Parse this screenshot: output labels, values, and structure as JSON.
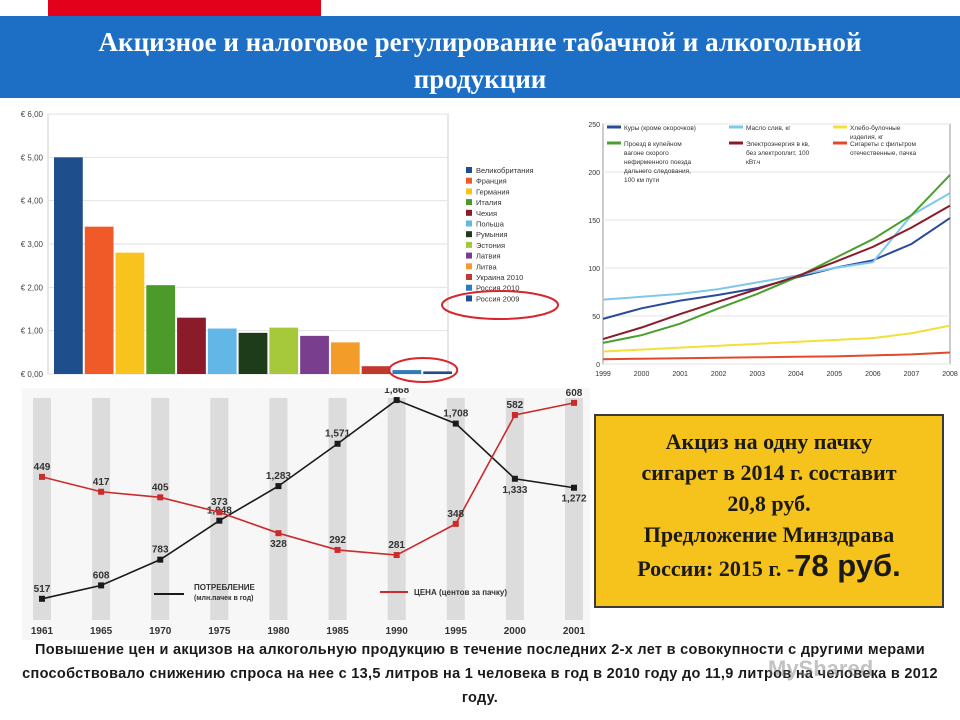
{
  "slide": {
    "title": "Акцизное и налоговое регулирование табачной и алкогольной продукции",
    "title_line1": "Акцизное и налоговое регулирование табачной и алкогольной",
    "title_line2": "продукции",
    "callout": {
      "line1": "Акциз на одну пачку",
      "line2": "сигарет в 2014 г. составит",
      "line3": "20,8 руб.",
      "line4": "Предложение Минздрава",
      "line5_a": "России:  2015 г. -",
      "line5_b": "78 руб."
    },
    "bottom_text": "Повышение цен и акцизов на алкогольную продукцию в течение последних 2-х лет в совокупности с другими мерами способствовало снижению спроса на нее с 13,5 литров на 1 человека в год в 2010 году до 11,9 литров на человека в 2012 году.",
    "watermark": "MyShared",
    "colors": {
      "banner": "#1c6fc4",
      "accent_red": "#e3001b",
      "callout": "#f6c21c"
    }
  },
  "chart_data": [
    {
      "type": "bar",
      "categories": [
        "Великобритания",
        "Франция",
        "Германия",
        "Италия",
        "Чехия",
        "Польша",
        "Румыния",
        "Эстония",
        "Латвия",
        "Литва",
        "Украина 2010",
        "Россия 2010",
        "Россия 2009"
      ],
      "values": [
        5.0,
        3.4,
        2.8,
        2.05,
        1.3,
        1.05,
        0.95,
        1.07,
        0.88,
        0.73,
        0.18,
        0.09,
        0.06
      ],
      "colors": [
        "#1f4e8c",
        "#f05a28",
        "#f7c31c",
        "#4c9a2a",
        "#8b1a2b",
        "#63b7e6",
        "#1e3b1a",
        "#a5c93a",
        "#7a3e8e",
        "#f39c2a",
        "#c0392b",
        "#2a7bc0",
        "#1f4e8c"
      ],
      "yticks": [
        "€ 0,00",
        "€ 1,00",
        "€ 2,00",
        "€ 3,00",
        "€ 4,00",
        "€ 5,00",
        "€ 6,00"
      ],
      "ylim": [
        0,
        6
      ],
      "legend": "right",
      "highlighted": [
        "Россия 2010",
        "Россия 2009"
      ]
    },
    {
      "type": "line",
      "x": [
        "1999",
        "2000",
        "2001",
        "2002",
        "2003",
        "2004",
        "2005",
        "2006",
        "2007",
        "2008"
      ],
      "ylim": [
        0,
        250
      ],
      "yticks": [
        "0",
        "50",
        "100",
        "150",
        "200",
        "250"
      ],
      "series": [
        {
          "name": "Куры (кроме окорочков)",
          "color": "#2a4a9c",
          "values": [
            47,
            58,
            66,
            72,
            79,
            90,
            100,
            108,
            125,
            152
          ]
        },
        {
          "name": "Масло слив, кг",
          "color": "#7ec8ea",
          "values": [
            67,
            70,
            73,
            78,
            85,
            92,
            100,
            106,
            155,
            178
          ]
        },
        {
          "name": "Хлебо-булочные изделия, кг",
          "color": "#f3df3a",
          "values": [
            13,
            15,
            17,
            19,
            21,
            23,
            25,
            27,
            32,
            40
          ]
        },
        {
          "name": "Проезд в купейном вагоне скорого нефирменного поезда дальнего следования, 100 км пути",
          "color": "#4aa02c",
          "values": [
            22,
            30,
            42,
            58,
            73,
            90,
            110,
            130,
            155,
            197
          ]
        },
        {
          "name": "Электроэнергия в кв, без электроплит, 100 кВт.ч",
          "color": "#8b1a2b",
          "values": [
            26,
            38,
            52,
            65,
            78,
            91,
            106,
            122,
            142,
            165
          ]
        },
        {
          "name": "Сигареты с фильтром отечественные, пачка",
          "color": "#e04a2a",
          "values": [
            5,
            5.5,
            6,
            6.5,
            7,
            7.5,
            8,
            9,
            10,
            12
          ]
        }
      ]
    },
    {
      "type": "line",
      "x": [
        "1961",
        "1965",
        "1970",
        "1975",
        "1980",
        "1985",
        "1990",
        "1995",
        "2000",
        "2001"
      ],
      "series": [
        {
          "name": "ПОТРЕБЛЕНИЕ (млн.пачек в год)",
          "color": "#1a1a1a",
          "values": [
            517,
            608,
            783,
            1048,
            1283,
            1571,
            1868,
            1708,
            1333,
            1272
          ],
          "labels": [
            "517",
            "608",
            "783",
            "1,048",
            "1,283",
            "1,571",
            "1,868",
            "1,708",
            "1,333",
            "1,272"
          ]
        },
        {
          "name": "ЦЕНА (центов за пачку)",
          "color": "#cc2b2b",
          "values": [
            449,
            417,
            405,
            373,
            328,
            292,
            281,
            348,
            582,
            608
          ],
          "labels": [
            "449",
            "417",
            "405",
            "373",
            "328",
            "292",
            "281",
            "348",
            "582",
            "608"
          ]
        }
      ],
      "legend": "bottom"
    }
  ]
}
